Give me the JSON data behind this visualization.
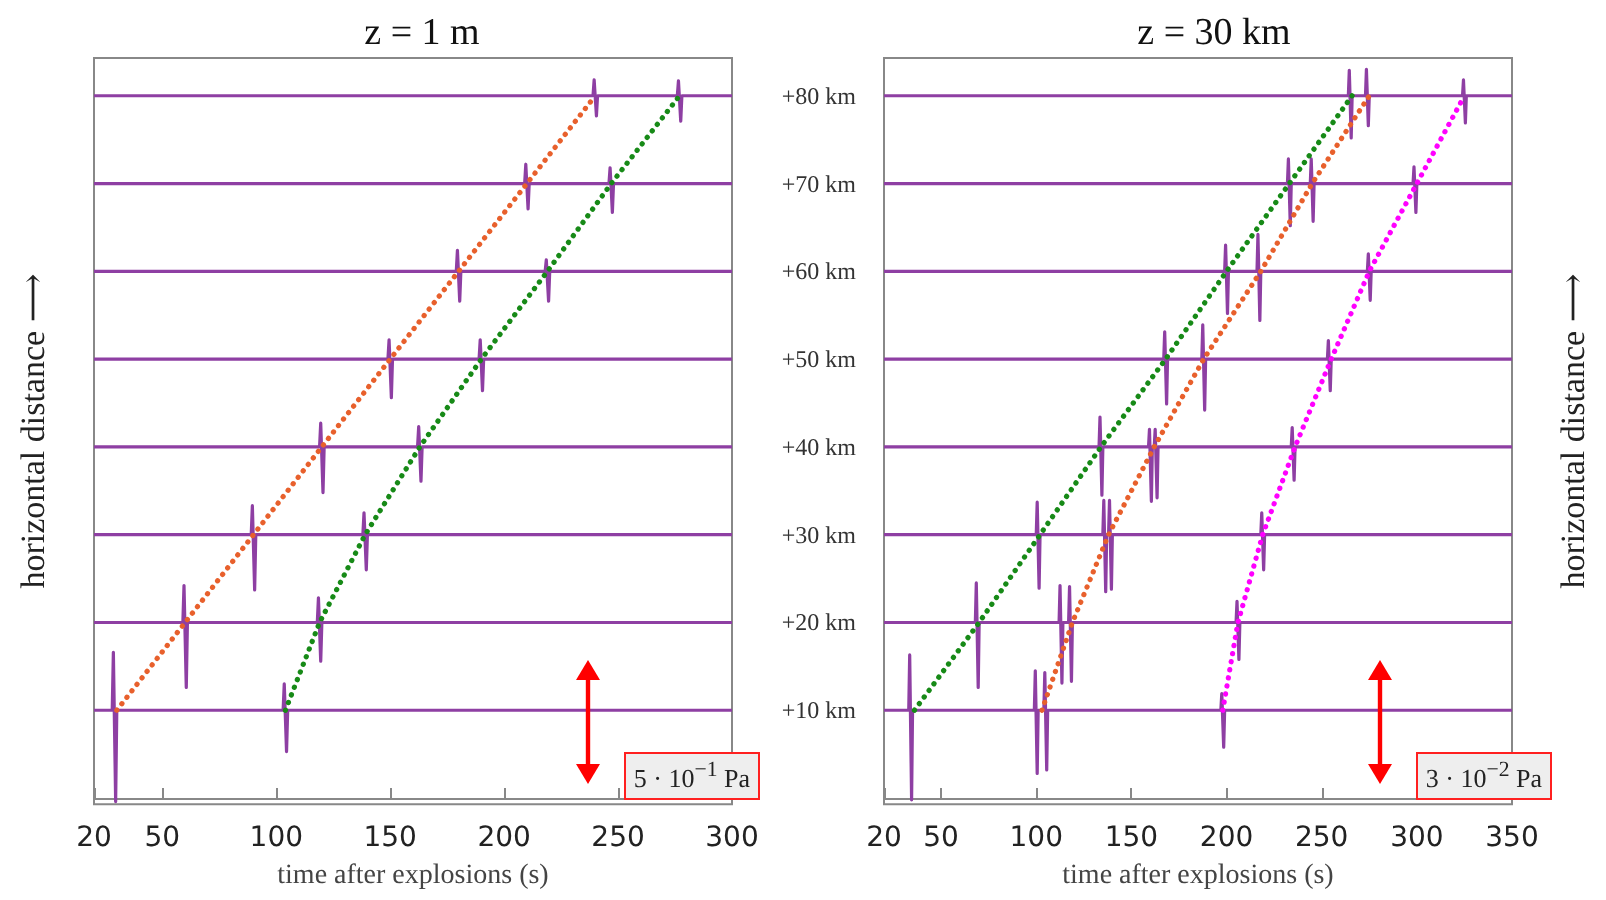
{
  "chart_data": [
    {
      "type": "line",
      "title": "z = 1 m",
      "xlabel": "time after explosions (s)",
      "ylabel": "horizontal distance ⟶",
      "xlim": [
        20,
        300
      ],
      "xticks": [
        20,
        50,
        100,
        150,
        200,
        250,
        300
      ],
      "ylim": [
        -0.7,
        84.3
      ],
      "tick_labels": "x",
      "marker": "none",
      "line_style": "solid",
      "annotations": [
        "5 · 10$^{−1}$ Pa"
      ],
      "series": [
        {
          "color": "#8e3fa3",
          "x": [
            20,
            28,
            28.5,
            29.5,
            30,
            103,
            103.5,
            104.5,
            105,
            300
          ],
          "values": [
            10,
            10,
            16.6,
            -0.4,
            10,
            10,
            13,
            5.3,
            10,
            10
          ]
        },
        {
          "color": "#8e3fa3",
          "x": [
            20,
            59,
            59.5,
            60.5,
            61,
            118,
            118.5,
            119.5,
            120,
            300
          ],
          "values": [
            20,
            20,
            24.2,
            12.6,
            20,
            20,
            22.8,
            15.6,
            20,
            20
          ]
        },
        {
          "color": "#8e3fa3",
          "x": [
            20,
            89,
            89.5,
            90.5,
            91,
            138,
            138.5,
            139.5,
            140,
            300
          ],
          "values": [
            30,
            30,
            33.3,
            23.7,
            30,
            30,
            32.5,
            26,
            30,
            30
          ]
        },
        {
          "color": "#8e3fa3",
          "x": [
            20,
            119,
            119.5,
            120.5,
            121,
            162,
            162.5,
            163.5,
            164,
            300
          ],
          "values": [
            40,
            40,
            42.7,
            34.8,
            40,
            40,
            42.3,
            36.1,
            40,
            40
          ]
        },
        {
          "color": "#8e3fa3",
          "x": [
            20,
            149,
            149.5,
            150.5,
            151,
            189,
            189.5,
            190.5,
            191,
            300
          ],
          "values": [
            50,
            50,
            52.2,
            45.6,
            50,
            50,
            52.2,
            46.4,
            50,
            50
          ]
        },
        {
          "color": "#8e3fa3",
          "x": [
            20,
            179,
            179.5,
            180.5,
            181,
            218,
            218.5,
            219.5,
            220,
            300
          ],
          "values": [
            60,
            60,
            62.4,
            56.6,
            60,
            60,
            61.3,
            56.6,
            60,
            60
          ]
        },
        {
          "color": "#8e3fa3",
          "x": [
            20,
            209,
            209.5,
            210.5,
            211,
            246,
            246.5,
            247.5,
            248,
            300
          ],
          "values": [
            70,
            70,
            72.2,
            67.1,
            70,
            70,
            71.8,
            66.7,
            70,
            70
          ]
        },
        {
          "color": "#8e3fa3",
          "x": [
            20,
            239,
            239.5,
            240.5,
            241,
            276,
            276.5,
            277.5,
            278,
            300
          ],
          "values": [
            80,
            80,
            81.8,
            77.7,
            80,
            80,
            81.7,
            77.1,
            80,
            80
          ]
        },
        {
          "color": "#e8602c",
          "line_style": "dotted",
          "x": [
            30,
            60,
            90,
            120,
            150,
            180,
            210,
            240
          ],
          "values": [
            10,
            20,
            30,
            40,
            50,
            60,
            70,
            80
          ]
        },
        {
          "color": "#178a17",
          "line_style": "dotted",
          "x": [
            104,
            119,
            139,
            163,
            190,
            219,
            247,
            277
          ],
          "values": [
            10,
            20,
            30,
            40,
            50,
            60,
            70,
            80
          ]
        }
      ]
    },
    {
      "type": "line",
      "title": "z = 30 km",
      "xlabel": "time after explosions (s)",
      "y2label": "horizontal distance ⟶",
      "xlim": [
        20,
        350
      ],
      "xticks": [
        20,
        50,
        100,
        150,
        200,
        250,
        300,
        350
      ],
      "ylim": [
        -0.7,
        84.3
      ],
      "yticks": [
        {
          "value": 10,
          "label": "+10 km"
        },
        {
          "value": 20,
          "label": "+20 km"
        },
        {
          "value": 30,
          "label": "+30 km"
        },
        {
          "value": 40,
          "label": "+40 km"
        },
        {
          "value": 50,
          "label": "+50 km"
        },
        {
          "value": 60,
          "label": "+60 km"
        },
        {
          "value": 70,
          "label": "+70 km"
        },
        {
          "value": 80,
          "label": "+80 km"
        }
      ],
      "marker": "none",
      "line_style": "solid",
      "annotations": [
        "3 · 10$^{−2}$ Pa"
      ],
      "series": [
        {
          "color": "#8e3fa3",
          "x": [
            20,
            33,
            33.5,
            34.5,
            35,
            99,
            99.5,
            100.5,
            101,
            104,
            104.5,
            105.5,
            106,
            197,
            197.5,
            198.5,
            199,
            350
          ],
          "values": [
            10,
            10,
            16.3,
            -0.2,
            10,
            10,
            14.5,
            2.8,
            10,
            10,
            14.3,
            3.2,
            10,
            10,
            11.9,
            5.8,
            10,
            10
          ]
        },
        {
          "color": "#8e3fa3",
          "x": [
            20,
            68,
            68.5,
            69.5,
            70,
            112,
            112.5,
            113.5,
            114,
            117,
            117.5,
            118.5,
            119,
            205,
            205.5,
            206.5,
            207,
            350
          ],
          "values": [
            20,
            20,
            24.5,
            12.6,
            20,
            20,
            24.2,
            13.1,
            20,
            20,
            24.1,
            13.3,
            20,
            20,
            22.4,
            15.8,
            20,
            20
          ]
        },
        {
          "color": "#8e3fa3",
          "x": [
            20,
            100,
            100.5,
            101.5,
            102,
            135,
            135.5,
            136.5,
            137,
            138,
            138.5,
            139.5,
            140,
            218,
            218.5,
            219.5,
            220,
            350
          ],
          "values": [
            30,
            30,
            33.7,
            23.9,
            30,
            30,
            33.9,
            23.5,
            30,
            30,
            33.9,
            23.8,
            30,
            30,
            32.5,
            26,
            30,
            30
          ]
        },
        {
          "color": "#8e3fa3",
          "x": [
            20,
            133,
            133.5,
            134.5,
            135,
            159,
            159.5,
            160.5,
            161,
            162,
            162.5,
            163.5,
            164,
            234,
            234.5,
            235.5,
            236,
            350
          ],
          "values": [
            40,
            40,
            43.4,
            34.5,
            40,
            40,
            42,
            33.8,
            40,
            40,
            42,
            34.2,
            40,
            40,
            42.2,
            36.2,
            40,
            40
          ]
        },
        {
          "color": "#8e3fa3",
          "x": [
            20,
            167,
            167.5,
            168.5,
            169,
            187,
            187.5,
            188.5,
            189,
            253,
            253.5,
            254.5,
            255,
            350
          ],
          "values": [
            50,
            50,
            53.1,
            44.9,
            50,
            50,
            53.9,
            44.2,
            50,
            50,
            52.1,
            46.4,
            50,
            50
          ]
        },
        {
          "color": "#8e3fa3",
          "x": [
            20,
            199,
            199.5,
            200.5,
            201,
            216,
            216.5,
            217.5,
            218,
            274,
            274.5,
            275.5,
            276,
            350
          ],
          "values": [
            60,
            60,
            63,
            55.2,
            60,
            60,
            64.2,
            54.4,
            60,
            60,
            62,
            56.7,
            60,
            60
          ]
        },
        {
          "color": "#8e3fa3",
          "x": [
            20,
            232,
            232.5,
            233.5,
            234,
            244,
            244.5,
            245.5,
            246,
            298,
            298.5,
            299.5,
            300,
            350
          ],
          "values": [
            70,
            70,
            72.8,
            65.2,
            70,
            70,
            72.8,
            65.7,
            70,
            70,
            71.9,
            66.7,
            70,
            70
          ]
        },
        {
          "color": "#8e3fa3",
          "x": [
            20,
            264,
            264.5,
            265.5,
            266,
            273,
            273.5,
            274.5,
            275,
            324,
            324.5,
            325.5,
            326,
            350
          ],
          "values": [
            80,
            80,
            82.9,
            75.2,
            80,
            80,
            83,
            76.6,
            80,
            80,
            81.8,
            76.9,
            80,
            80
          ]
        },
        {
          "color": "#178a17",
          "line_style": "dotted",
          "x": [
            36,
            70,
            102,
            134,
            168,
            200,
            233,
            266
          ],
          "values": [
            10,
            20,
            30,
            40,
            50,
            60,
            70,
            80
          ]
        },
        {
          "color": "#e8602c",
          "line_style": "dotted",
          "x": [
            103,
            119,
            138,
            162,
            188,
            218,
            245,
            275
          ],
          "values": [
            10,
            20,
            30,
            40,
            50,
            60,
            70,
            80
          ]
        },
        {
          "color": "#ff00ff",
          "line_style": "dotted",
          "x": [
            198,
            206,
            219,
            236,
            255,
            275,
            300,
            325
          ],
          "values": [
            10,
            20,
            30,
            40,
            50,
            60,
            70,
            80
          ]
        }
      ]
    }
  ]
}
